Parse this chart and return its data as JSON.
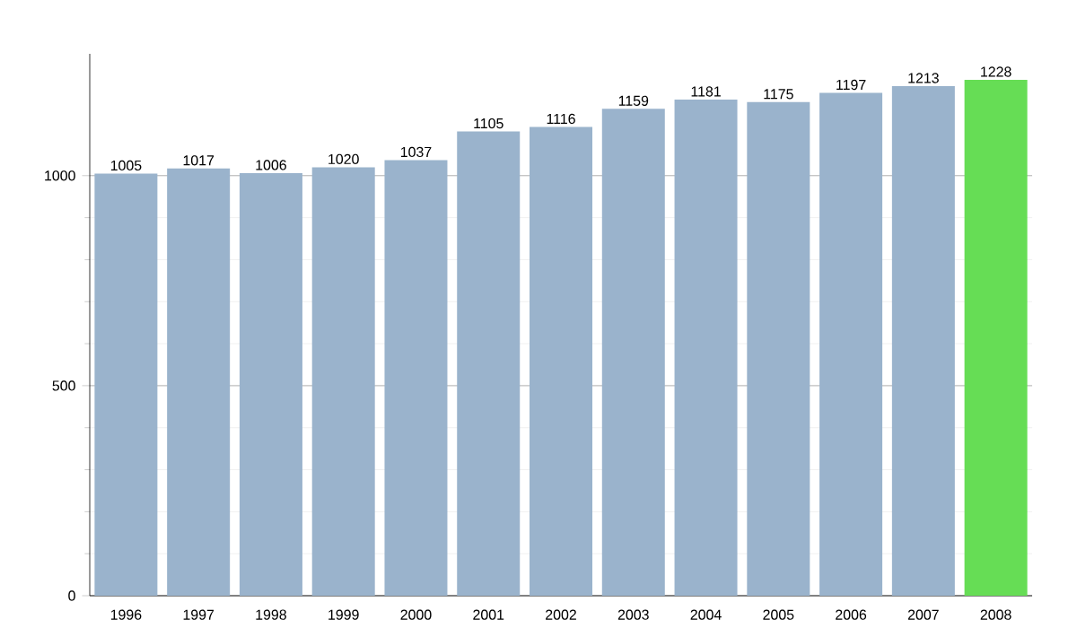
{
  "chart_data": {
    "type": "bar",
    "categories": [
      "1996",
      "1997",
      "1998",
      "1999",
      "2000",
      "2001",
      "2002",
      "2003",
      "2004",
      "2005",
      "2006",
      "2007",
      "2008"
    ],
    "values": [
      1005,
      1017,
      1006,
      1020,
      1037,
      1105,
      1116,
      1159,
      1181,
      1175,
      1197,
      1213,
      1228
    ],
    "colors": [
      "#9ab3cc",
      "#9ab3cc",
      "#9ab3cc",
      "#9ab3cc",
      "#9ab3cc",
      "#9ab3cc",
      "#9ab3cc",
      "#9ab3cc",
      "#9ab3cc",
      "#9ab3cc",
      "#9ab3cc",
      "#9ab3cc",
      "#66dd55"
    ],
    "ylim": [
      0,
      1290
    ],
    "yticks": [
      0,
      500,
      1000
    ],
    "grid": "y",
    "data_labels": true
  }
}
